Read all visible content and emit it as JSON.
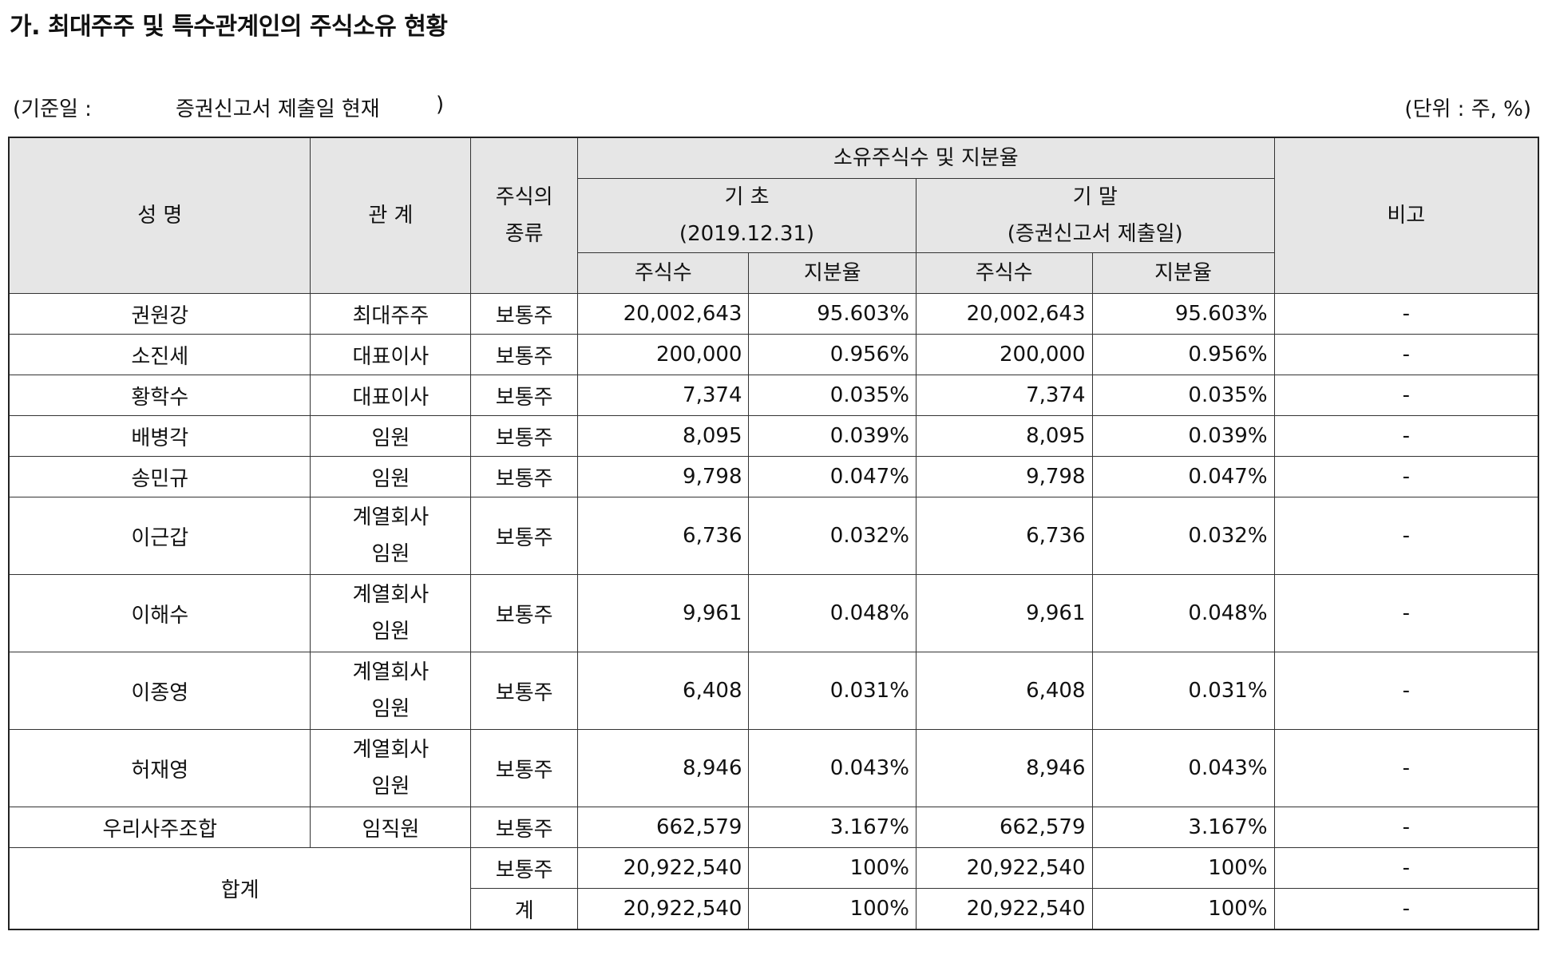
{
  "title": "가. 최대주주 및 특수관계인의 주식소유 현황",
  "basis": {
    "label": "(기준일 :",
    "value": "증권신고서 제출일 현재",
    "close": ")"
  },
  "unit": "(단위 : 주, %)",
  "header": {
    "name": "성 명",
    "relation": "관 계",
    "stock_type_line1": "주식의",
    "stock_type_line2": "종류",
    "ownership": "소유주식수 및 지분율",
    "begin_line1": "기 초",
    "begin_line2": "(2019.12.31)",
    "end_line1": "기 말",
    "end_line2": "(증권신고서 제출일)",
    "remarks": "비고",
    "shares_begin": "주식수",
    "ratio_begin": "지분율",
    "shares_end": "주식수",
    "ratio_end": "지분율"
  },
  "rows": [
    {
      "name": "권원강",
      "relation": [
        "최대주주"
      ],
      "type": "보통주",
      "shares_begin": "20,002,643",
      "ratio_begin": "95.603%",
      "shares_end": "20,002,643",
      "ratio_end": "95.603%",
      "remarks": "-"
    },
    {
      "name": "소진세",
      "relation": [
        "대표이사"
      ],
      "type": "보통주",
      "shares_begin": "200,000",
      "ratio_begin": "0.956%",
      "shares_end": "200,000",
      "ratio_end": "0.956%",
      "remarks": "-"
    },
    {
      "name": "황학수",
      "relation": [
        "대표이사"
      ],
      "type": "보통주",
      "shares_begin": "7,374",
      "ratio_begin": "0.035%",
      "shares_end": "7,374",
      "ratio_end": "0.035%",
      "remarks": "-"
    },
    {
      "name": "배병각",
      "relation": [
        "임원"
      ],
      "type": "보통주",
      "shares_begin": "8,095",
      "ratio_begin": "0.039%",
      "shares_end": "8,095",
      "ratio_end": "0.039%",
      "remarks": "-"
    },
    {
      "name": "송민규",
      "relation": [
        "임원"
      ],
      "type": "보통주",
      "shares_begin": "9,798",
      "ratio_begin": "0.047%",
      "shares_end": "9,798",
      "ratio_end": "0.047%",
      "remarks": "-"
    },
    {
      "name": "이근갑",
      "relation": [
        "계열회사",
        "임원"
      ],
      "type": "보통주",
      "shares_begin": "6,736",
      "ratio_begin": "0.032%",
      "shares_end": "6,736",
      "ratio_end": "0.032%",
      "remarks": "-"
    },
    {
      "name": "이해수",
      "relation": [
        "계열회사",
        "임원"
      ],
      "type": "보통주",
      "shares_begin": "9,961",
      "ratio_begin": "0.048%",
      "shares_end": "9,961",
      "ratio_end": "0.048%",
      "remarks": "-"
    },
    {
      "name": "이종영",
      "relation": [
        "계열회사",
        "임원"
      ],
      "type": "보통주",
      "shares_begin": "6,408",
      "ratio_begin": "0.031%",
      "shares_end": "6,408",
      "ratio_end": "0.031%",
      "remarks": "-"
    },
    {
      "name": "허재영",
      "relation": [
        "계열회사",
        "임원"
      ],
      "type": "보통주",
      "shares_begin": "8,946",
      "ratio_begin": "0.043%",
      "shares_end": "8,946",
      "ratio_end": "0.043%",
      "remarks": "-"
    },
    {
      "name": "우리사주조합",
      "relation": [
        "임직원"
      ],
      "type": "보통주",
      "shares_begin": "662,579",
      "ratio_begin": "3.167%",
      "shares_end": "662,579",
      "ratio_end": "3.167%",
      "remarks": "-"
    }
  ],
  "total": {
    "label": "합계",
    "rows": [
      {
        "type": "보통주",
        "shares_begin": "20,922,540",
        "ratio_begin": "100%",
        "shares_end": "20,922,540",
        "ratio_end": "100%",
        "remarks": "-"
      },
      {
        "type": "계",
        "shares_begin": "20,922,540",
        "ratio_begin": "100%",
        "shares_end": "20,922,540",
        "ratio_end": "100%",
        "remarks": "-"
      }
    ]
  }
}
